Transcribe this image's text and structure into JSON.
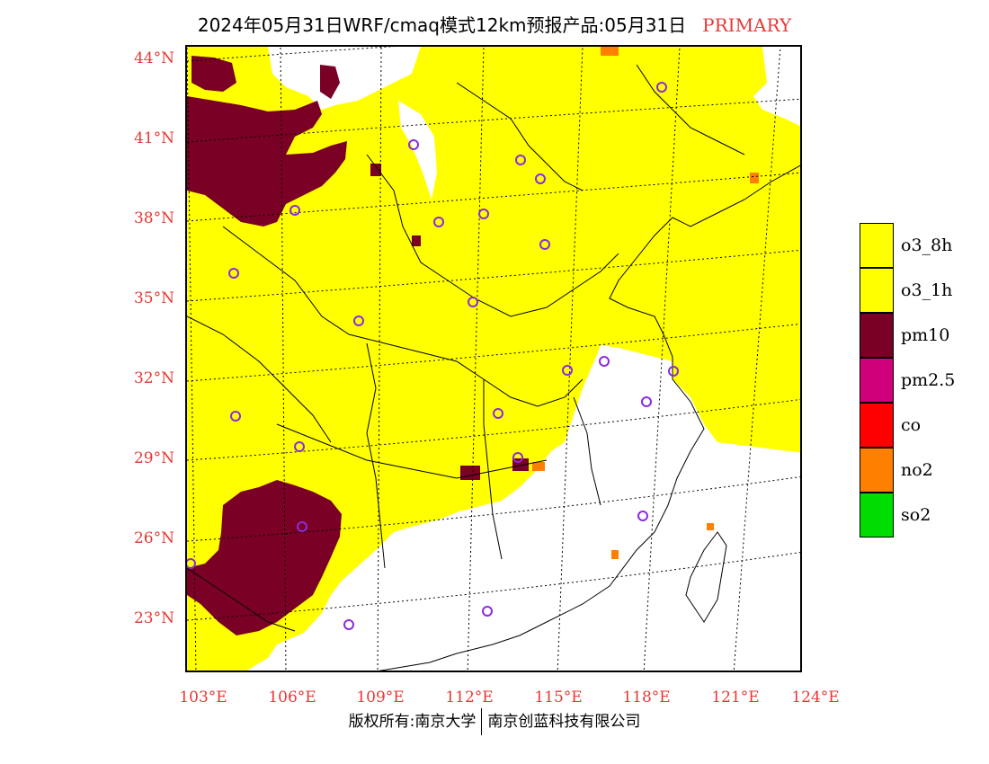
{
  "title": {
    "main": "2024年05月31日WRF/cmaq模式12km预报产品:05月31日",
    "tag": "PRIMARY"
  },
  "lat_labels": [
    "44°N",
    "41°N",
    "38°N",
    "35°N",
    "32°N",
    "29°N",
    "26°N",
    "23°N"
  ],
  "lon_labels": [
    "103°E",
    "106°E",
    "109°E",
    "112°E",
    "115°E",
    "118°E",
    "121°E",
    "124°E"
  ],
  "legend": [
    {
      "label": "o3_8h",
      "color": "#ffff00"
    },
    {
      "label": "o3_1h",
      "color": "#ffff00"
    },
    {
      "label": "pm10",
      "color": "#7a0025"
    },
    {
      "label": "pm2.5",
      "color": "#d0007a"
    },
    {
      "label": "co",
      "color": "#ff0000"
    },
    {
      "label": "no2",
      "color": "#ff7f00"
    },
    {
      "label": "so2",
      "color": "#00dd00"
    }
  ],
  "colors": {
    "o3": "#ffff00",
    "pm10": "#7a0025",
    "no2": "#ff7f00",
    "site_marker": "#8a2be2",
    "label_red": "#e53935"
  },
  "footer": {
    "left": "版权所有:南京大学",
    "right": "南京创蓝科技有限公司"
  }
}
